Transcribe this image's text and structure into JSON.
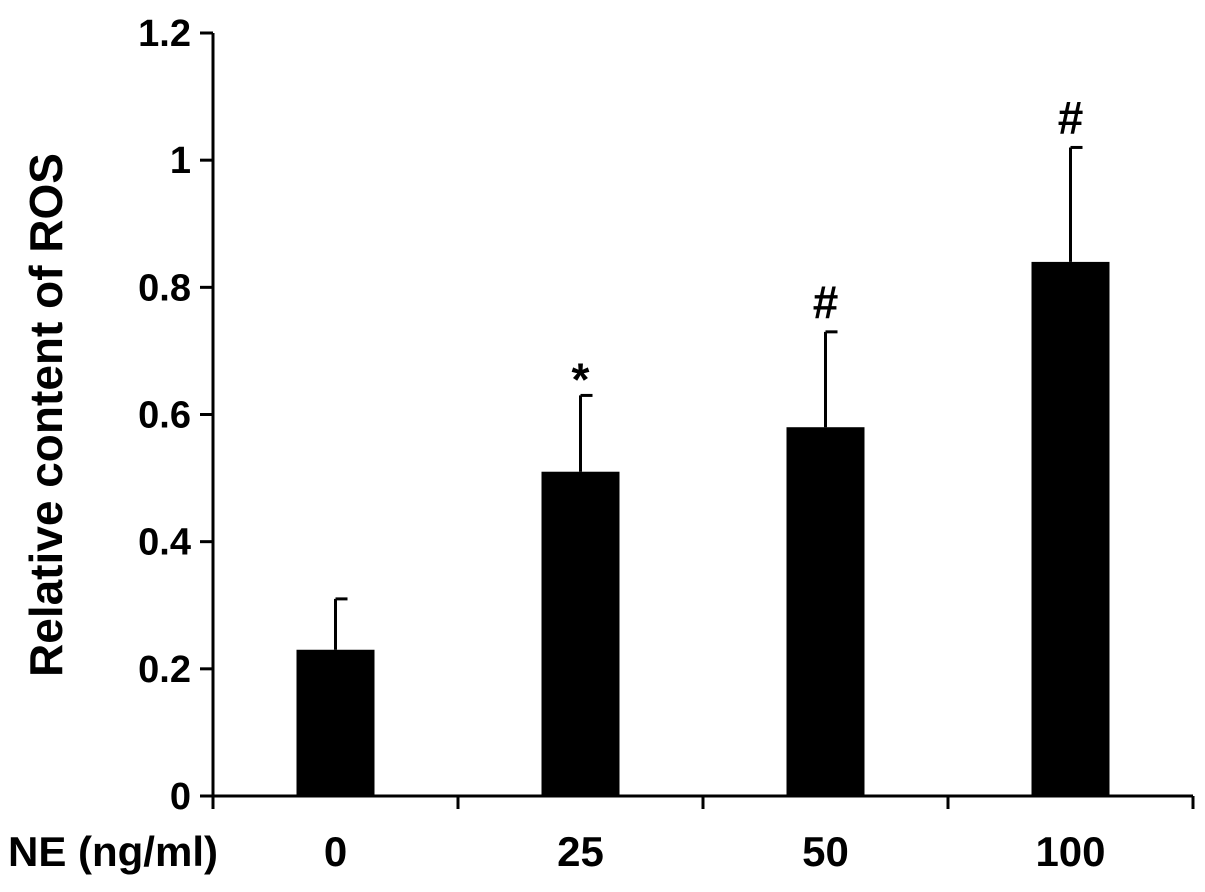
{
  "chart_data": {
    "type": "bar",
    "title": "",
    "xlabel": "NE (ng/ml)",
    "ylabel": "Relative content of ROS",
    "categories": [
      "0",
      "25",
      "50",
      "100"
    ],
    "values": [
      0.23,
      0.51,
      0.58,
      0.84
    ],
    "errors": [
      0.08,
      0.12,
      0.15,
      0.18
    ],
    "annotations": [
      "",
      "*",
      "#",
      "#"
    ],
    "ylim": [
      0,
      1.2
    ],
    "yticks": [
      0,
      0.2,
      0.4,
      0.6,
      0.8,
      1,
      1.2
    ],
    "ytick_labels": [
      "0",
      "0.2",
      "0.4",
      "0.6",
      "0.8",
      "1",
      "1.2"
    ],
    "bar_color": "#000000",
    "grid": false,
    "legend": "none"
  }
}
